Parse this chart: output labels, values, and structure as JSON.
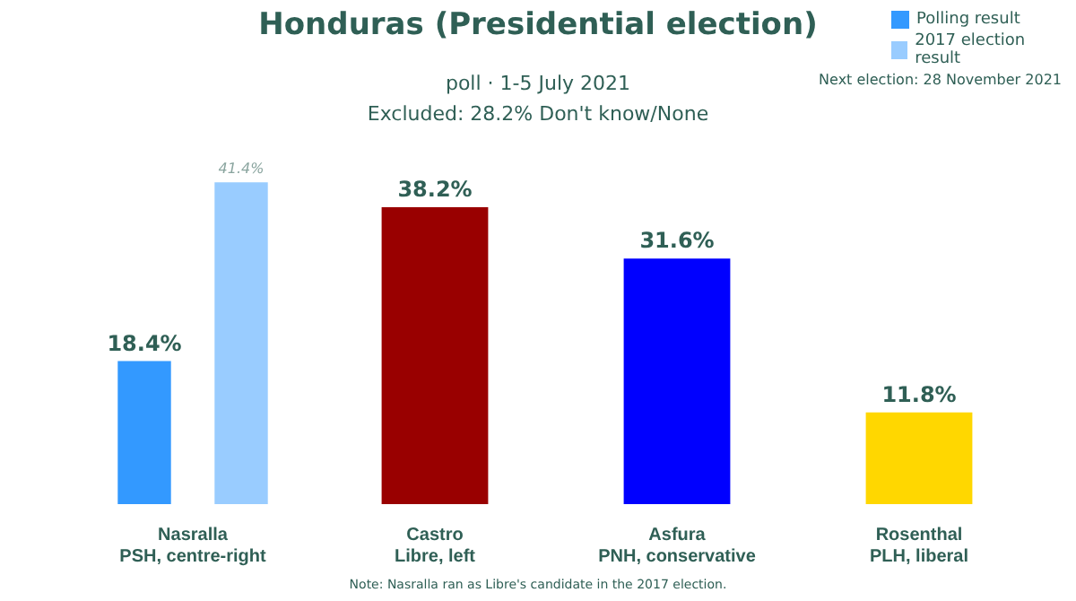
{
  "chart_data": {
    "type": "bar",
    "title": "Honduras (Presidential election)",
    "subtitle": "poll · 1-5 July 2021",
    "categories": [
      "Nasralla\nPSH, centre-right",
      "Castro\nLibre, left",
      "Asfura\nPNH, conservative",
      "Rosenthal\nPLH, liberal"
    ],
    "series": [
      {
        "name": "Polling result",
        "colors": [
          "#3399ff",
          "#990000",
          "#0000ff",
          "#ffd700"
        ],
        "values": [
          18.4,
          38.2,
          31.6,
          11.8
        ],
        "value_labels": [
          "18.4%",
          "38.2%",
          "31.6%",
          "11.8%"
        ]
      },
      {
        "name": "2017 election result",
        "color": "#99ccff",
        "values": [
          41.4,
          null,
          null,
          null
        ],
        "value_labels": [
          "41.4%",
          null,
          null,
          null
        ]
      }
    ],
    "legend": "top right",
    "grid": false,
    "tick_labels": "x",
    "annotations": [
      "Excluded: 28.2% Don't know/None",
      "Next election: 28 November 2021",
      "Note: Nasralla ran as Libre's candidate in the 2017 election."
    ]
  }
}
